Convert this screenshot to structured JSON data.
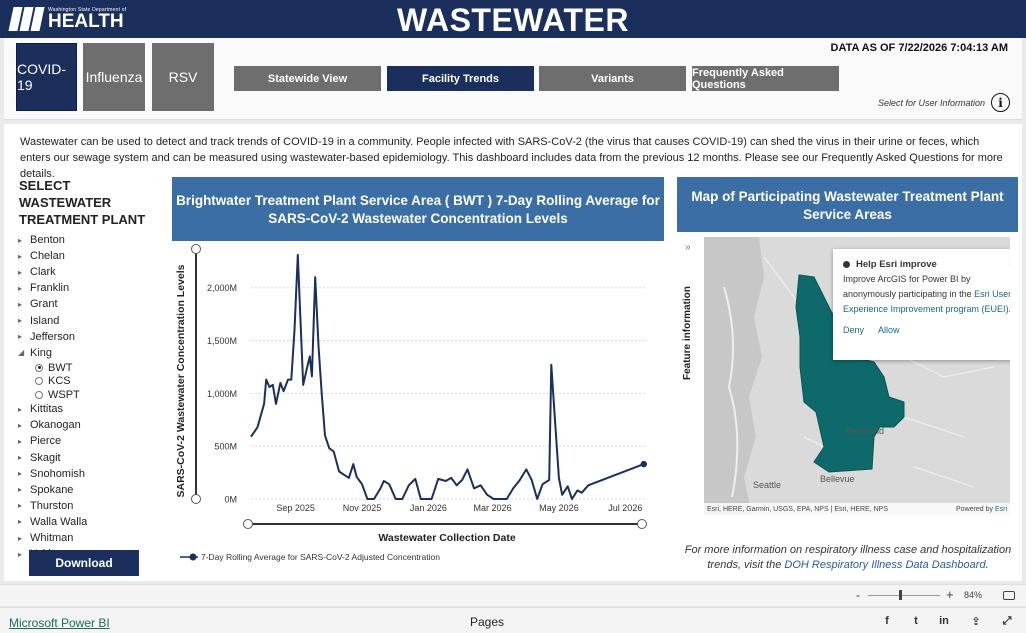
{
  "header": {
    "logo_small": "Washington State Department of",
    "logo_big": "HEALTH",
    "title": "WASTEWATER"
  },
  "virus_tabs": [
    {
      "label": "COVID-19",
      "active": true
    },
    {
      "label": "Influenza",
      "active": false
    },
    {
      "label": "RSV",
      "active": false
    }
  ],
  "nav_buttons": [
    {
      "label": "Statewide View",
      "active": false
    },
    {
      "label": "Facility Trends",
      "active": true
    },
    {
      "label": "Variants",
      "active": false
    },
    {
      "label": "Frequently Asked Questions",
      "active": false
    }
  ],
  "data_as_of": "DATA AS OF 7/22/2026 7:04:13 AM",
  "user_info_label": "Select for User Information",
  "intro": "Wastewater can be used to detect and track trends of COVID-19 in a community. People infected with SARS-CoV-2 (the virus that causes COVID-19) can shed the virus in their urine or feces, which enters our sewage system and can be measured using wastewater-based epidemiology. This dashboard includes data from the previous 12 months. Please see our Frequently Asked Questions for more details.",
  "facility_list": {
    "title_line1": "SELECT WASTEWATER",
    "title_line2": "TREATMENT PLANT",
    "counties_before": [
      "Benton",
      "Chelan",
      "Clark",
      "Franklin",
      "Grant",
      "Island",
      "Jefferson"
    ],
    "expanded": "King",
    "sub_items": [
      {
        "label": "BWT",
        "selected": true
      },
      {
        "label": "KCS",
        "selected": false
      },
      {
        "label": "WSPT",
        "selected": false
      }
    ],
    "counties_after": [
      "Kittitas",
      "Okanogan",
      "Pierce",
      "Skagit",
      "Snohomish",
      "Spokane",
      "Thurston",
      "Walla Walla",
      "Whitman",
      "Yakima"
    ],
    "download_label": "Download"
  },
  "chart": {
    "header_line1": "Brightwater Treatment Plant Service Area ( BWT ) 7-Day Rolling Average for",
    "header_line2": "SARS-CoV-2 Wastewater Concentration Levels"
  },
  "chart_data": {
    "type": "line",
    "title": "Brightwater Treatment Plant Service Area ( BWT ) 7-Day Rolling Average for SARS-CoV-2 Wastewater Concentration Levels",
    "xlabel": "Wastewater Collection Date",
    "ylabel": "SARS-CoV-2 Wastewater Concentration Levels",
    "ylim": [
      0,
      2300000000
    ],
    "xlim": [
      "2025-07-22",
      "2026-07-20"
    ],
    "y_ticks": [
      {
        "value": 0,
        "label": "0M"
      },
      {
        "value": 500000000,
        "label": "500M"
      },
      {
        "value": 1000000000,
        "label": "1,000M"
      },
      {
        "value": 1500000000,
        "label": "1,500M"
      },
      {
        "value": 2000000000,
        "label": "2,000M"
      }
    ],
    "x_ticks": [
      {
        "value": "2025-09-01",
        "label": "Sep 2025"
      },
      {
        "value": "2025-11-01",
        "label": "Nov 2025"
      },
      {
        "value": "2026-01-01",
        "label": "Jan 2026"
      },
      {
        "value": "2026-03-01",
        "label": "Mar 2026"
      },
      {
        "value": "2026-05-01",
        "label": "May 2026"
      },
      {
        "value": "2026-07-01",
        "label": "Jul 2026"
      }
    ],
    "grid": true,
    "legend_position": "bottom-left",
    "series": [
      {
        "name": "7-Day Rolling Average for SARS-CoV-2 Adjusted Concentration",
        "color": "#1b2f5c",
        "points": [
          {
            "x": "2025-07-22",
            "y": 590000000
          },
          {
            "x": "2025-07-28",
            "y": 680000000
          },
          {
            "x": "2025-08-03",
            "y": 900000000
          },
          {
            "x": "2025-08-05",
            "y": 1130000000
          },
          {
            "x": "2025-08-08",
            "y": 1060000000
          },
          {
            "x": "2025-08-11",
            "y": 1080000000
          },
          {
            "x": "2025-08-14",
            "y": 900000000
          },
          {
            "x": "2025-08-18",
            "y": 1100000000
          },
          {
            "x": "2025-08-21",
            "y": 1020000000
          },
          {
            "x": "2025-08-25",
            "y": 1130000000
          },
          {
            "x": "2025-08-28",
            "y": 1130000000
          },
          {
            "x": "2025-08-31",
            "y": 1600000000
          },
          {
            "x": "2025-09-03",
            "y": 2310000000
          },
          {
            "x": "2025-09-05",
            "y": 1800000000
          },
          {
            "x": "2025-09-08",
            "y": 1080000000
          },
          {
            "x": "2025-09-11",
            "y": 1220000000
          },
          {
            "x": "2025-09-14",
            "y": 1350000000
          },
          {
            "x": "2025-09-16",
            "y": 1160000000
          },
          {
            "x": "2025-09-19",
            "y": 2100000000
          },
          {
            "x": "2025-09-22",
            "y": 1450000000
          },
          {
            "x": "2025-09-25",
            "y": 1000000000
          },
          {
            "x": "2025-09-28",
            "y": 600000000
          },
          {
            "x": "2025-10-02",
            "y": 480000000
          },
          {
            "x": "2025-10-06",
            "y": 450000000
          },
          {
            "x": "2025-10-11",
            "y": 260000000
          },
          {
            "x": "2025-10-20",
            "y": 200000000
          },
          {
            "x": "2025-10-24",
            "y": 330000000
          },
          {
            "x": "2025-10-27",
            "y": 210000000
          },
          {
            "x": "2025-11-01",
            "y": 140000000
          },
          {
            "x": "2025-11-06",
            "y": 0
          },
          {
            "x": "2025-11-12",
            "y": 0
          },
          {
            "x": "2025-11-18",
            "y": 100000000
          },
          {
            "x": "2025-11-21",
            "y": 170000000
          },
          {
            "x": "2025-11-26",
            "y": 140000000
          },
          {
            "x": "2025-12-02",
            "y": 0
          },
          {
            "x": "2025-12-08",
            "y": 0
          },
          {
            "x": "2025-12-14",
            "y": 130000000
          },
          {
            "x": "2025-12-20",
            "y": 190000000
          },
          {
            "x": "2025-12-25",
            "y": 0
          },
          {
            "x": "2025-12-29",
            "y": 0
          },
          {
            "x": "2026-01-04",
            "y": 0
          },
          {
            "x": "2026-01-10",
            "y": 190000000
          },
          {
            "x": "2026-01-17",
            "y": 170000000
          },
          {
            "x": "2026-01-22",
            "y": 200000000
          },
          {
            "x": "2026-01-27",
            "y": 130000000
          },
          {
            "x": "2026-02-01",
            "y": 180000000
          },
          {
            "x": "2026-02-06",
            "y": 280000000
          },
          {
            "x": "2026-02-12",
            "y": 100000000
          },
          {
            "x": "2026-02-18",
            "y": 130000000
          },
          {
            "x": "2026-02-24",
            "y": 40000000
          },
          {
            "x": "2026-03-02",
            "y": 0
          },
          {
            "x": "2026-03-08",
            "y": 0
          },
          {
            "x": "2026-03-14",
            "y": 0
          },
          {
            "x": "2026-03-20",
            "y": 100000000
          },
          {
            "x": "2026-03-26",
            "y": 180000000
          },
          {
            "x": "2026-04-01",
            "y": 280000000
          },
          {
            "x": "2026-04-06",
            "y": 180000000
          },
          {
            "x": "2026-04-11",
            "y": 0
          },
          {
            "x": "2026-04-16",
            "y": 140000000
          },
          {
            "x": "2026-04-22",
            "y": 180000000
          },
          {
            "x": "2026-04-24",
            "y": 1270000000
          },
          {
            "x": "2026-04-27",
            "y": 800000000
          },
          {
            "x": "2026-05-01",
            "y": 200000000
          },
          {
            "x": "2026-05-04",
            "y": 40000000
          },
          {
            "x": "2026-05-09",
            "y": 120000000
          },
          {
            "x": "2026-05-13",
            "y": 0
          },
          {
            "x": "2026-05-18",
            "y": 80000000
          },
          {
            "x": "2026-05-22",
            "y": 60000000
          },
          {
            "x": "2026-05-28",
            "y": 130000000
          },
          {
            "x": "2026-07-18",
            "y": 330000000
          }
        ]
      }
    ]
  },
  "map": {
    "header_line1": "Map of Participating Wastewater Treatment Plant",
    "header_line2": "Service Areas",
    "feature_tab": "Feature information",
    "popup": {
      "title": "Help Esri improve",
      "body_prefix": "Improve ArcGIS for Power BI by anonymously participating in the ",
      "link": "Esri User Experience Improvement program (EUEI).",
      "deny": "Deny",
      "allow": "Allow"
    },
    "labels": {
      "redmond": "Redmond",
      "seattle": "Seattle",
      "bellevue": "Bellevue"
    },
    "attribution": "Esri, HERE, Garmin, USGS, EPA, NPS | Esri, HERE, NPS",
    "powered_prefix": "Powered by",
    "powered_brand": "Esri",
    "shape_color": "#0e6a6a"
  },
  "more_info": {
    "line1": "For more information on respiratory illness case and hospitalization",
    "line2_prefix": "trends, visit the ",
    "link": "DOH Respiratory Illness Data Dashboard",
    "line2_suffix": "."
  },
  "zoombar": {
    "minus": "-",
    "plus": "+",
    "zoom": "84%"
  },
  "footer": {
    "pbi_link": "Microsoft Power BI",
    "pages": "Pages",
    "share_icons": [
      "f",
      "t",
      "in",
      "⇪",
      "⤢"
    ]
  }
}
